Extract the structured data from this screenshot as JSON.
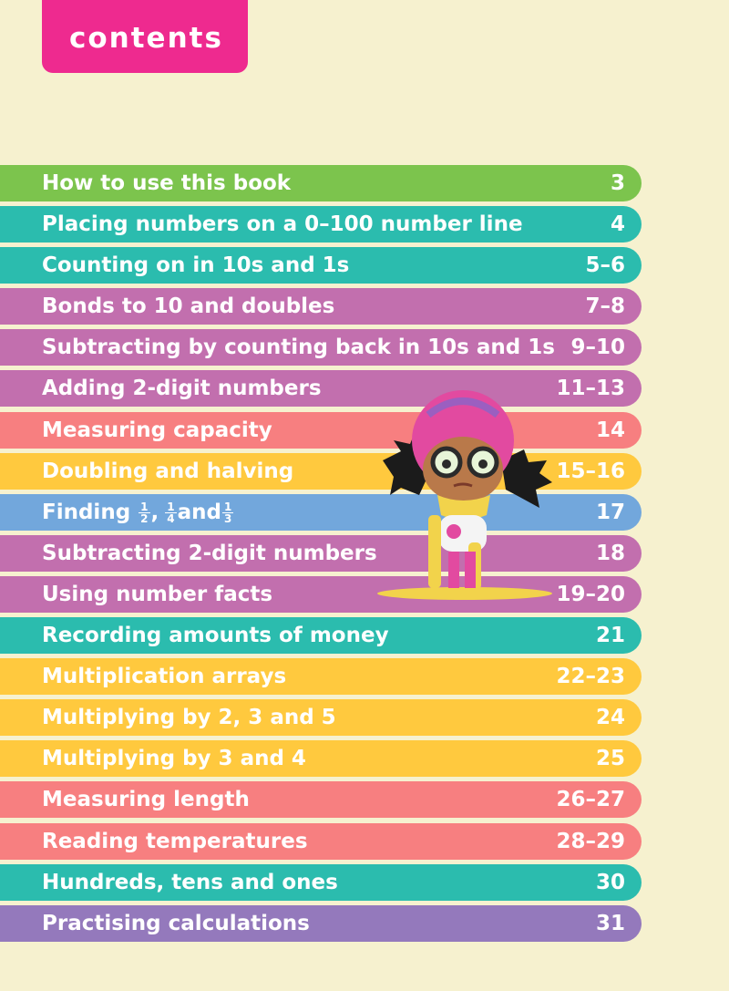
{
  "header": {
    "label": "contents"
  },
  "colors": {
    "background": "#f6f1cf",
    "tab": "#ee2a8f",
    "green": "#7cc44d",
    "teal": "#2bbcae",
    "purple": "#c26fae",
    "salmon": "#f77f80",
    "yellow": "#ffc93e",
    "blue": "#72a7dc",
    "violet": "#9479bc"
  },
  "toc": [
    {
      "title": "How to use this book",
      "pages": "3",
      "color": "#7cc44d"
    },
    {
      "title": "Placing numbers on a 0–100 number line",
      "pages": "4",
      "color": "#2bbcae"
    },
    {
      "title": "Counting on in 10s and 1s",
      "pages": "5–6",
      "color": "#2bbcae"
    },
    {
      "title": "Bonds to 10 and doubles",
      "pages": "7–8",
      "color": "#c26fae"
    },
    {
      "title": "Subtracting by counting back in 10s and 1s",
      "pages": "9–10",
      "color": "#c26fae"
    },
    {
      "title": "Adding 2-digit numbers",
      "pages": "11–13",
      "color": "#c26fae"
    },
    {
      "title": "Measuring capacity",
      "pages": "14",
      "color": "#f77f80"
    },
    {
      "title": "Doubling and halving",
      "pages": "15–16",
      "color": "#ffc93e"
    },
    {
      "title_prefix": "Finding",
      "fractions": [
        [
          "1",
          "2"
        ],
        [
          "1",
          "4"
        ],
        [
          "1",
          "3"
        ]
      ],
      "fraction_join": ",",
      "fraction_and": "and",
      "pages": "17",
      "color": "#72a7dc"
    },
    {
      "title": "Subtracting 2-digit numbers",
      "pages": "18",
      "color": "#c26fae"
    },
    {
      "title": "Using number facts",
      "pages": "19–20",
      "color": "#c26fae"
    },
    {
      "title": "Recording amounts of money",
      "pages": "21",
      "color": "#2bbcae"
    },
    {
      "title": "Multiplication arrays",
      "pages": "22–23",
      "color": "#ffc93e"
    },
    {
      "title": "Multiplying by 2, 3 and 5",
      "pages": "24",
      "color": "#ffc93e"
    },
    {
      "title": "Multiplying by 3 and 4",
      "pages": "25",
      "color": "#ffc93e"
    },
    {
      "title": "Measuring length",
      "pages": "26–27",
      "color": "#f77f80"
    },
    {
      "title": "Reading temperatures",
      "pages": "28–29",
      "color": "#f77f80"
    },
    {
      "title": "Hundreds, tens and ones",
      "pages": "30",
      "color": "#2bbcae"
    },
    {
      "title": "Practising calculations",
      "pages": "31",
      "color": "#9479bc"
    }
  ],
  "illustration": {
    "icon": "cartoon-girl-icon"
  }
}
